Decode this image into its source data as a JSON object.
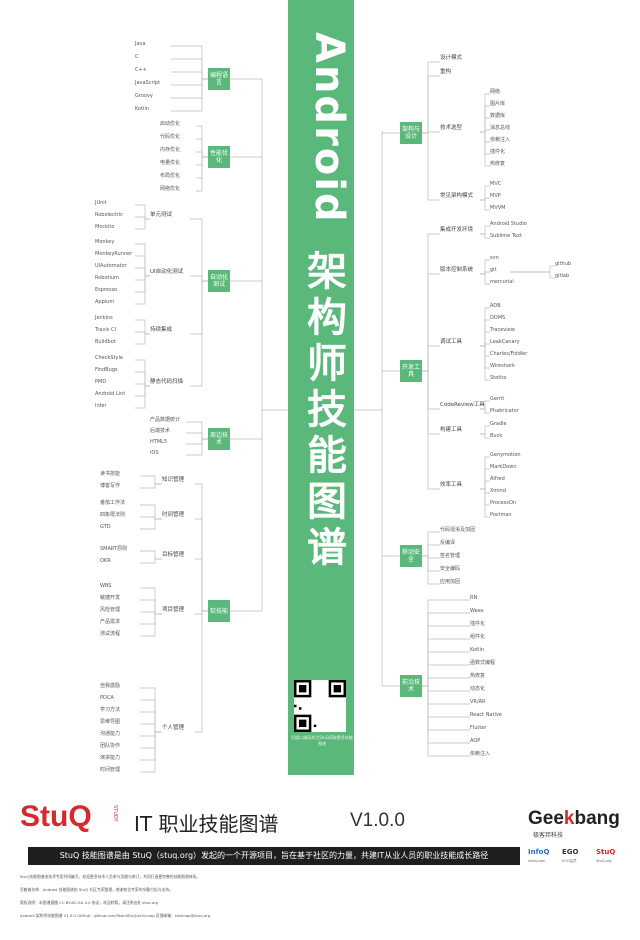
{
  "title_en": "Android",
  "title_cn": "架构师技能图谱",
  "qr_caption": "扫描二维码关注StuQ获取更多技能图谱",
  "left": {
    "cat1": {
      "label": "编程语言",
      "items": [
        "Java",
        "C",
        "C++",
        "JavaScript",
        "Groovy",
        "Kotlin"
      ]
    },
    "cat2": {
      "label": "性能优化",
      "items": [
        "启动优化",
        "代码优化",
        "内存优化",
        "电量优化",
        "布局优化",
        "网络优化"
      ]
    },
    "cat3": {
      "label": "自动化测试",
      "branches": [
        {
          "label": "单元测试",
          "items": [
            "JUnit",
            "Robolectric",
            "Mockito"
          ]
        },
        {
          "label": "UI自动化测试",
          "items": [
            "Monkey",
            "MonkeyRunner",
            "UIAutomator",
            "Robotium",
            "Espresso",
            "Appium"
          ]
        },
        {
          "label": "持续集成",
          "items": [
            "Jenkins",
            "Travis CI",
            "Buildbot"
          ]
        },
        {
          "label": "静态代码扫描",
          "items": [
            "CheckStyle",
            "FindBugs",
            "PMD",
            "Android Lint",
            "Infer"
          ]
        }
      ]
    },
    "cat4": {
      "label": "周边技术",
      "items": [
        "产品数据统计",
        "后端技术",
        "HTML5",
        "iOS"
      ]
    },
    "cat5": {
      "label": "软技能",
      "branches": [
        {
          "label": "知识管理",
          "items": [
            "读书技能",
            "博客写作"
          ]
        },
        {
          "label": "时间管理",
          "items": [
            "番茄工作法",
            "四象限法则",
            "GTD"
          ]
        },
        {
          "label": "目标管理",
          "items": [
            "SMART原则",
            "OKR"
          ]
        },
        {
          "label": "项目管理",
          "items": [
            "WBS",
            "敏捷开发",
            "风险管理",
            "产品需求",
            "测试流程"
          ]
        },
        {
          "label": "个人管理",
          "items": [
            "自我激励",
            "PDCA",
            "学习方法",
            "思维导图",
            "沟通能力",
            "团队协作",
            "演讲能力",
            "时间管理"
          ]
        }
      ]
    }
  },
  "right": {
    "cat1": {
      "label": "架构与设计",
      "branches": [
        {
          "label": "设计模式",
          "items": []
        },
        {
          "label": "重构",
          "items": []
        },
        {
          "label": "技术选型",
          "items": [
            "网络",
            "图片库",
            "数据库",
            "消息总线",
            "依赖注入",
            "插件化",
            "热修复"
          ]
        },
        {
          "label": "常见架构模式",
          "items": [
            "MVC",
            "MVP",
            "MVVM"
          ]
        }
      ]
    },
    "cat2": {
      "label": "开发工具",
      "branches": [
        {
          "label": "集成开发环境",
          "items": [
            "Android Studio",
            "Sublime Text"
          ]
        },
        {
          "label": "版本控制系统",
          "items": [
            "svn",
            "git",
            "mercurial"
          ],
          "sub": [
            "github",
            "gitlab"
          ]
        },
        {
          "label": "调试工具",
          "items": [
            "ADB",
            "DDMS",
            "Traceview",
            "LeakCanary",
            "Charles/Fiddler",
            "Wireshark",
            "Stetho"
          ]
        },
        {
          "label": "CodeReview工具",
          "items": [
            "Gerrit",
            "Phabricator"
          ]
        },
        {
          "label": "构建工具",
          "items": [
            "Gradle",
            "Buck"
          ]
        },
        {
          "label": "效率工具",
          "items": [
            "Genymotion",
            "MarkDown",
            "Alfred",
            "Xmind",
            "ProcessOn",
            "Postman"
          ]
        }
      ]
    },
    "cat3": {
      "label": "移动安全",
      "items": [
        "代码混淆及加固",
        "反编译",
        "签名管理",
        "安全编码",
        "应用加固"
      ]
    },
    "cat4": {
      "label": "前沿技术",
      "items": [
        "RN",
        "Weex",
        "插件化",
        "组件化",
        "Kotlin",
        "函数式编程",
        "热修复",
        "动态化",
        "VR/AR",
        "React Native",
        "Flutter",
        "AOP",
        "依赖注入"
      ]
    }
  },
  "footer": {
    "logo": "StuQ",
    "logo_small": "STUDY",
    "subtitle": "IT 职业技能图谱",
    "version": "V1.0.0",
    "geek": "Geekbang",
    "geek_k": "k",
    "geek_cn": "极客邦科技",
    "banner": "StuQ 技能图谱是由 StuQ（stuq.org）发起的一个开源项目，旨在基于社区的力量，共建IT从业人员的职业技能成长路径",
    "brands": [
      {
        "name": "InfoQ",
        "sub": "infoq.com",
        "color": "#2c6fb5"
      },
      {
        "name": "EGO",
        "sub": "EGO会员",
        "color": "#333333"
      },
      {
        "name": "StuQ",
        "sub": "StuQ.org",
        "color": "#d7282c"
      }
    ],
    "fine": [
      "StuQ技能图谱由技术专家共同编写，欢迎更多技术人员参与贡献与修订，共同打造更完善的技能图谱体系。",
      "贡献者名单：Android 技能图谱由 StuQ 社区专家整理，感谢各位专家的辛勤付出与支持。",
      "版权说明：本图谱遵循 CC BY-NC-SA 4.0 协议，欢迎转载，请注明出处 stuq.org",
      "Android 架构师技能图谱 V1.0.0    GitHub：github.com/TeamStuQ/skill-map    反馈邮箱：skillmap@stuq.org"
    ]
  }
}
